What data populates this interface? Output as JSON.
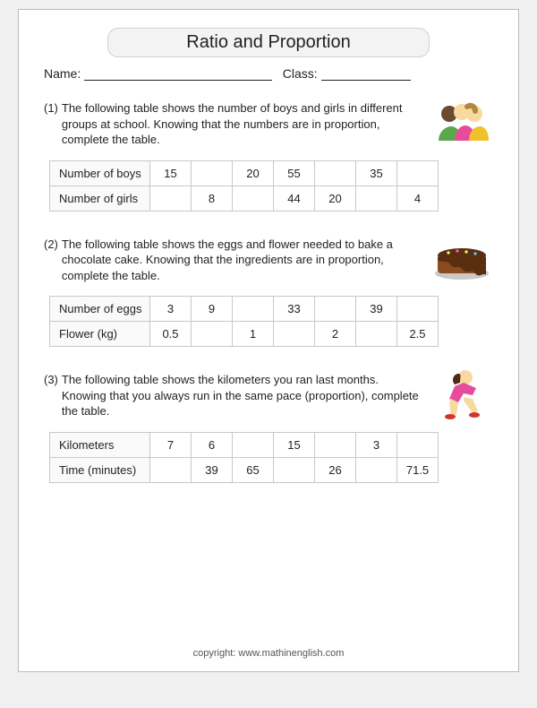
{
  "title": "Ratio and Proportion",
  "name_label": "Name:",
  "class_label": "Class:",
  "problems": [
    {
      "num": "(1)",
      "text": "The following table shows the number of boys and girls in different groups at school. Knowing that the numbers are in proportion, complete the table.",
      "icon": "people",
      "rows": [
        {
          "label": "Number of boys",
          "cells": [
            "15",
            "",
            "20",
            "55",
            "",
            "35",
            ""
          ]
        },
        {
          "label": "Number of girls",
          "cells": [
            "",
            "8",
            "",
            "44",
            "20",
            "",
            "4"
          ]
        }
      ]
    },
    {
      "num": "(2)",
      "text": "The following table shows the eggs and flower needed to bake a chocolate cake. Knowing that the ingredients are in proportion, complete the table.",
      "icon": "cake",
      "rows": [
        {
          "label": "Number of eggs",
          "cells": [
            "3",
            "9",
            "",
            "33",
            "",
            "39",
            ""
          ]
        },
        {
          "label": "Flower (kg)",
          "cells": [
            "0.5",
            "",
            "1",
            "",
            "2",
            "",
            "2.5"
          ]
        }
      ]
    },
    {
      "num": "(3)",
      "text": "The following table shows the kilometers you ran last months. Knowing that you always run in the same pace (proportion), complete the table.",
      "icon": "runner",
      "rows": [
        {
          "label": "Kilometers",
          "cells": [
            "7",
            "6",
            "",
            "15",
            "",
            "3",
            ""
          ]
        },
        {
          "label": "Time (minutes)",
          "cells": [
            "",
            "39",
            "65",
            "",
            "26",
            "",
            "71.5"
          ]
        }
      ]
    }
  ],
  "footer": "copyright:   www.mathinenglish.com"
}
